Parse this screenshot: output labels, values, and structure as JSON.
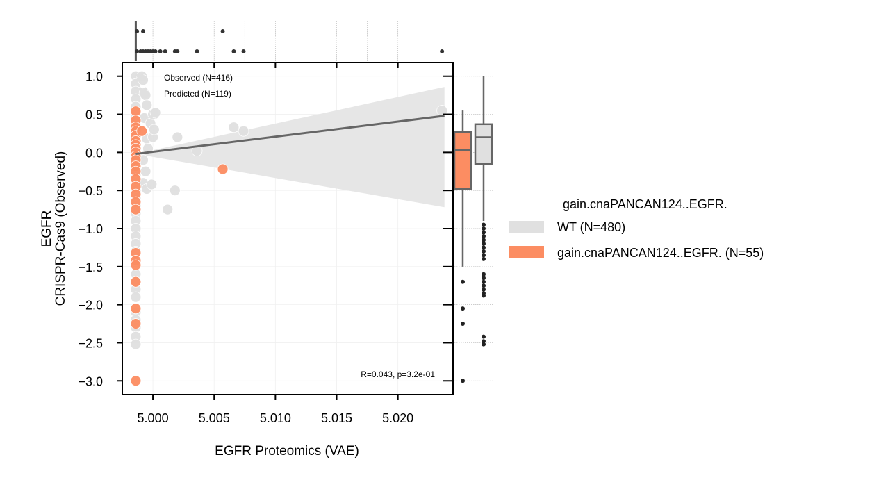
{
  "chart_data": {
    "type": "scatter",
    "xlabel": "EGFR Proteomics (VAE)",
    "ylabel_line1": "EGFR",
    "ylabel_line2": "CRISPR-Cas9 (Observed)",
    "xlim": [
      4.9975,
      5.0245
    ],
    "ylim": [
      -3.18,
      1.18
    ],
    "x_ticks": [
      5.0,
      5.005,
      5.01,
      5.015,
      5.02
    ],
    "x_tick_labels": [
      "5.000",
      "5.005",
      "5.010",
      "5.015",
      "5.020"
    ],
    "y_ticks": [
      1.0,
      0.5,
      0.0,
      -0.5,
      -1.0,
      -1.5,
      -2.0,
      -2.5,
      -3.0
    ],
    "y_tick_labels": [
      "1.0",
      "0.5",
      "0.0",
      "−0.5",
      "−1.0",
      "−1.5",
      "−2.0",
      "−2.5",
      "−3.0"
    ],
    "annotation_top_1": "Observed (N=416)",
    "annotation_top_2": "Predicted (N=119)",
    "annotation_stats": "R=0.043, p=3.2e-01",
    "legend_title": "gain.cnaPANCAN124..EGFR.",
    "legend_placement": "right",
    "regression": {
      "x": [
        4.9986,
        5.0238
      ],
      "y": [
        -0.02,
        0.48
      ],
      "ci_low": [
        -0.02,
        -0.72
      ],
      "ci_high": [
        -0.02,
        0.86
      ]
    },
    "series": [
      {
        "name": "WT (N=480)",
        "color": "#e0e0e0",
        "points": [
          [
            4.9986,
            1.0
          ],
          [
            4.9986,
            0.9
          ],
          [
            4.9986,
            0.8
          ],
          [
            4.9986,
            0.7
          ],
          [
            4.9986,
            0.6
          ],
          [
            4.9986,
            0.5
          ],
          [
            4.9986,
            0.42
          ],
          [
            4.9986,
            0.35
          ],
          [
            4.9986,
            0.3
          ],
          [
            4.9986,
            0.22
          ],
          [
            4.9986,
            0.15
          ],
          [
            4.9986,
            0.1
          ],
          [
            4.9986,
            0.05
          ],
          [
            4.9986,
            0.0
          ],
          [
            4.9986,
            -0.05
          ],
          [
            4.9986,
            -0.1
          ],
          [
            4.9986,
            -0.15
          ],
          [
            4.9986,
            -0.2
          ],
          [
            4.9986,
            -0.3
          ],
          [
            4.9986,
            -0.4
          ],
          [
            4.9986,
            -0.5
          ],
          [
            4.9986,
            -0.6
          ],
          [
            4.9986,
            -0.7
          ],
          [
            4.9986,
            -0.8
          ],
          [
            4.9986,
            -0.9
          ],
          [
            4.9986,
            -1.0
          ],
          [
            4.9986,
            -1.1
          ],
          [
            4.9986,
            -1.2
          ],
          [
            4.9986,
            -1.3
          ],
          [
            4.9986,
            -1.45
          ],
          [
            4.9986,
            -1.6
          ],
          [
            4.9986,
            -1.7
          ],
          [
            4.9986,
            -1.8
          ],
          [
            4.9986,
            -1.9
          ],
          [
            4.9986,
            -2.1
          ],
          [
            4.9986,
            -2.2
          ],
          [
            4.9986,
            -2.3
          ],
          [
            4.9986,
            -2.42
          ],
          [
            4.9986,
            -2.52
          ],
          [
            4.9991,
            1.0
          ],
          [
            4.9992,
            0.95
          ],
          [
            4.9993,
            0.78
          ],
          [
            4.9994,
            0.75
          ],
          [
            4.9995,
            0.62
          ],
          [
            4.9993,
            0.45
          ],
          [
            4.9995,
            0.18
          ],
          [
            4.9996,
            0.05
          ],
          [
            4.9992,
            -0.1
          ],
          [
            4.9994,
            -0.25
          ],
          [
            4.9992,
            -0.4
          ],
          [
            4.9995,
            -0.48
          ],
          [
            4.9998,
            0.38
          ],
          [
            5.0,
            0.2
          ],
          [
            5.0001,
            0.3
          ],
          [
            4.9999,
            -0.42
          ],
          [
            5.0,
            0.5
          ],
          [
            5.0002,
            0.52
          ],
          [
            5.0012,
            -0.75
          ],
          [
            5.0018,
            -0.5
          ],
          [
            5.002,
            0.2
          ],
          [
            5.0036,
            0.02
          ],
          [
            5.0066,
            0.33
          ],
          [
            5.0074,
            0.28
          ],
          [
            5.0236,
            0.55
          ]
        ]
      },
      {
        "name": "gain.cnaPANCAN124..EGFR. (N=55)",
        "color": "#fc8d62",
        "points": [
          [
            4.9986,
            0.54
          ],
          [
            4.9986,
            0.42
          ],
          [
            4.9986,
            0.33
          ],
          [
            4.9986,
            0.28
          ],
          [
            4.9986,
            0.22
          ],
          [
            4.9986,
            0.15
          ],
          [
            4.9986,
            0.1
          ],
          [
            4.9986,
            0.05
          ],
          [
            4.9986,
            0.0
          ],
          [
            4.9986,
            -0.05
          ],
          [
            4.9986,
            -0.1
          ],
          [
            4.9986,
            -0.18
          ],
          [
            4.9986,
            -0.25
          ],
          [
            4.9986,
            -0.35
          ],
          [
            4.9986,
            -0.45
          ],
          [
            4.9986,
            -0.55
          ],
          [
            4.9986,
            -0.65
          ],
          [
            4.9986,
            -0.75
          ],
          [
            4.9986,
            -1.32
          ],
          [
            4.9986,
            -1.42
          ],
          [
            4.9986,
            -1.48
          ],
          [
            4.9986,
            -1.7
          ],
          [
            4.9986,
            -2.05
          ],
          [
            4.9986,
            -2.25
          ],
          [
            4.9986,
            -3.0
          ],
          [
            4.9991,
            0.28
          ],
          [
            5.0057,
            -0.22
          ]
        ]
      }
    ],
    "marginal_top": {
      "box_x": [
        4.9986,
        4.9986,
        4.9986,
        4.9986,
        4.9986
      ],
      "outliers_lower": [
        4.9987,
        4.999,
        4.9992,
        4.9994,
        4.9996,
        4.9998,
        5.0,
        5.0002,
        5.0006,
        5.001,
        5.0018,
        5.002,
        5.0036,
        5.0066,
        5.0074,
        5.0236
      ],
      "outliers_upper": [
        4.9987,
        4.9992,
        5.0057
      ]
    },
    "marginal_right": [
      {
        "name": "gain.cnaPANCAN124..EGFR. (N=55)",
        "color": "#fc8d62",
        "whisker_low": -1.5,
        "q1": -0.48,
        "median": 0.03,
        "q3": 0.27,
        "whisker_high": 0.55,
        "outliers": [
          -1.7,
          -2.05,
          -2.25,
          -3.0
        ]
      },
      {
        "name": "WT (N=480)",
        "color": "#e0e0e0",
        "whisker_low": -0.9,
        "q1": -0.15,
        "median": 0.2,
        "q3": 0.37,
        "whisker_high": 1.0,
        "outliers": [
          -0.95,
          -1.0,
          -1.05,
          -1.1,
          -1.15,
          -1.2,
          -1.25,
          -1.3,
          -1.35,
          -1.4,
          -1.6,
          -1.65,
          -1.7,
          -1.75,
          -1.8,
          -1.85,
          -1.88,
          -2.42,
          -2.48,
          -2.52
        ]
      }
    ]
  }
}
